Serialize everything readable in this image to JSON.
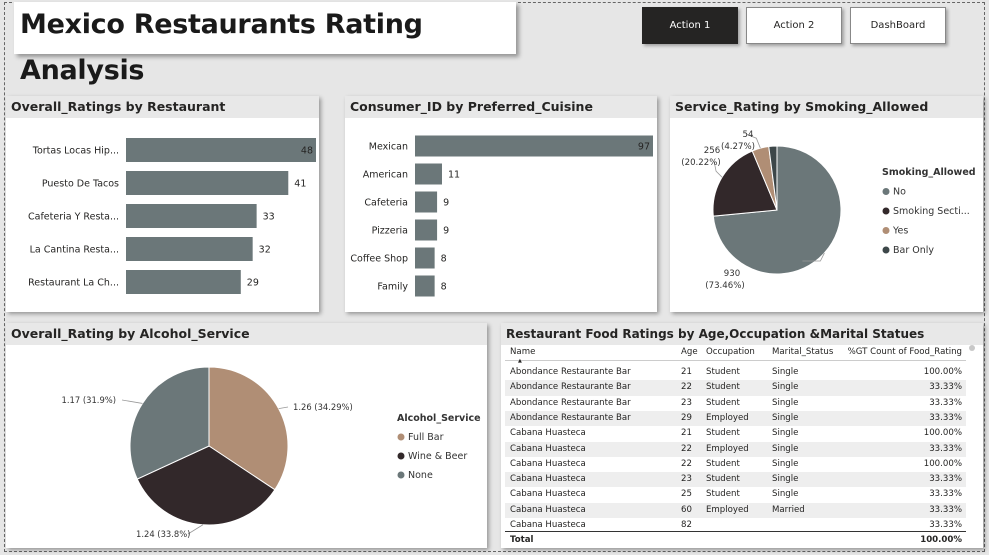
{
  "page": {
    "title": "Mexico Restaurants Rating Analysis",
    "buttons": [
      {
        "label": "Action 1",
        "active": true
      },
      {
        "label": "Action 2",
        "active": false
      },
      {
        "label": "DashBoard",
        "active": false
      }
    ]
  },
  "colors": {
    "bar": "#6b7779",
    "no": "#6b7779",
    "smoking_section": "#32282a",
    "yes": "#b08e75",
    "bar_only": "#3d4749",
    "full_bar": "#b08e75",
    "wine_beer": "#32282a",
    "none": "#6b7779"
  },
  "chart_data": [
    {
      "id": "overall-ratings-by-restaurant",
      "type": "bar",
      "orientation": "horizontal",
      "title": "Overall_Ratings by Restaurant",
      "categories": [
        "Tortas Locas Hip...",
        "Puesto De Tacos",
        "Cafeteria Y Resta...",
        "La Cantina Resta...",
        "Restaurant La Ch..."
      ],
      "values": [
        48,
        41,
        33,
        32,
        29
      ],
      "data_labels": true
    },
    {
      "id": "consumer-by-cuisine",
      "type": "bar",
      "orientation": "horizontal",
      "title": "Consumer_ID by Preferred_Cuisine",
      "categories": [
        "Mexican",
        "American",
        "Cafeteria",
        "Pizzeria",
        "Coffee Shop",
        "Family"
      ],
      "values": [
        97,
        11,
        9,
        9,
        8,
        8
      ],
      "data_labels": true
    },
    {
      "id": "service-rating-by-smoking",
      "type": "pie",
      "title": "Service_Rating by Smoking_Allowed",
      "legend_title": "Smoking_Allowed",
      "legend_position": "right",
      "slices": [
        {
          "name": "No",
          "value": 930,
          "percent": "73.46%",
          "label": "930",
          "pct_label": "(73.46%)"
        },
        {
          "name": "Smoking Secti...",
          "value": 256,
          "percent": "20.22%",
          "label": "256",
          "pct_label": "(20.22%)"
        },
        {
          "name": "Yes",
          "value": 54,
          "percent": "4.27%",
          "label": "54",
          "pct_label": "(4.27%)"
        },
        {
          "name": "Bar Only",
          "value": 26,
          "percent": "2.05%",
          "label": "",
          "pct_label": ""
        }
      ]
    },
    {
      "id": "overall-rating-by-alcohol",
      "type": "pie",
      "title": "Overall_Rating by Alcohol_Service",
      "legend_title": "Alcohol_Service",
      "legend_position": "right",
      "slices": [
        {
          "name": "Full Bar",
          "value": 1.26,
          "percent": "34.29%",
          "label": "1.26 (34.29%)"
        },
        {
          "name": "Wine & Beer",
          "value": 1.24,
          "percent": "33.8%",
          "label": "1.24 (33.8%)"
        },
        {
          "name": "None",
          "value": 1.17,
          "percent": "31.9%",
          "label": "1.17 (31.9%)"
        }
      ]
    },
    {
      "id": "restaurant-food-ratings-table",
      "type": "table",
      "title": "Restaurant Food Ratings by Age,Occupation &Marital Statues",
      "columns": [
        "Name",
        "Age",
        "Occupation",
        "Marital_Status",
        "%GT Count of Food_Rating"
      ],
      "rows": [
        [
          "Abondance Restaurante Bar",
          "21",
          "Student",
          "Single",
          "100.00%"
        ],
        [
          "Abondance Restaurante Bar",
          "22",
          "Student",
          "Single",
          "33.33%"
        ],
        [
          "Abondance Restaurante Bar",
          "23",
          "Student",
          "Single",
          "33.33%"
        ],
        [
          "Abondance Restaurante Bar",
          "29",
          "Employed",
          "Single",
          "33.33%"
        ],
        [
          "Cabana Huasteca",
          "21",
          "Student",
          "Single",
          "100.00%"
        ],
        [
          "Cabana Huasteca",
          "22",
          "Employed",
          "Single",
          "33.33%"
        ],
        [
          "Cabana Huasteca",
          "22",
          "Student",
          "Single",
          "100.00%"
        ],
        [
          "Cabana Huasteca",
          "23",
          "Student",
          "Single",
          "33.33%"
        ],
        [
          "Cabana Huasteca",
          "25",
          "Student",
          "Single",
          "33.33%"
        ],
        [
          "Cabana Huasteca",
          "60",
          "Employed",
          "Married",
          "33.33%"
        ],
        [
          "Cabana Huasteca",
          "82",
          "",
          "",
          "33.33%"
        ]
      ],
      "total": {
        "label": "Total",
        "value": "100.00%"
      }
    }
  ]
}
